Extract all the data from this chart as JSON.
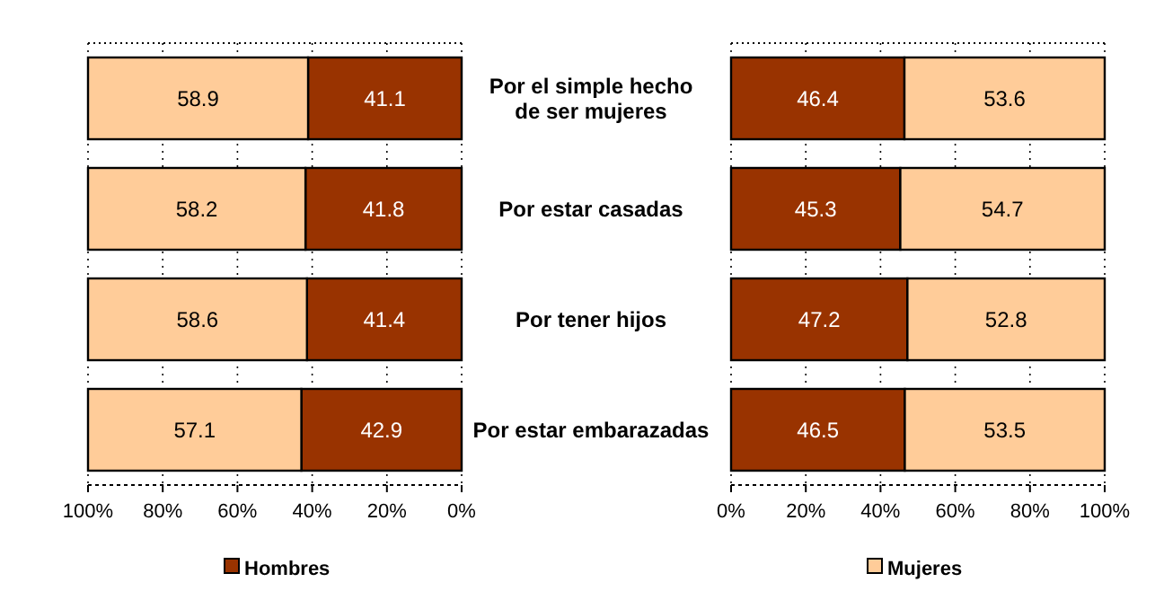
{
  "chart_data": [
    {
      "type": "bar",
      "orientation": "horizontal",
      "stacked": true,
      "categories": [
        null,
        null,
        null,
        null
      ],
      "series": [
        {
          "name": "Hombres",
          "color": "#993300",
          "values": [
            41.1,
            41.8,
            41.4,
            42.9
          ]
        },
        {
          "color": "#ffcc99",
          "values": [
            58.9,
            58.2,
            58.6,
            57.1
          ]
        }
      ],
      "xlim": [
        100,
        0
      ],
      "xticks": [
        {
          "value": 100,
          "label": "100%"
        },
        {
          "value": 80,
          "label": "80%"
        },
        {
          "value": 60,
          "label": "60%"
        },
        {
          "value": 40,
          "label": "40%"
        },
        {
          "value": 20,
          "label": "20%"
        },
        {
          "value": 0,
          "label": "0%"
        }
      ],
      "tick_labels": "x",
      "grid": "x",
      "data_labels": true,
      "legend": "bottom"
    },
    {
      "type": "bar",
      "orientation": "horizontal",
      "stacked": true,
      "categories": [
        "Por el simple hecho\nde ser mujeres",
        "Por estar casadas",
        "Por tener hijos",
        "Por estar embarazadas"
      ],
      "series": [
        {
          "color": "#993300",
          "values": [
            46.4,
            45.3,
            47.2,
            46.5
          ]
        },
        {
          "name": "Mujeres",
          "color": "#ffcc99",
          "values": [
            53.6,
            54.7,
            52.8,
            53.5
          ]
        }
      ],
      "xlim": [
        0,
        100
      ],
      "xticks": [
        {
          "value": 0,
          "label": "0%"
        },
        {
          "value": 20,
          "label": "20%"
        },
        {
          "value": 40,
          "label": "40%"
        },
        {
          "value": 60,
          "label": "60%"
        },
        {
          "value": 80,
          "label": "80%"
        },
        {
          "value": 100,
          "label": "100%"
        }
      ],
      "grid": "x",
      "data_labels": true,
      "legend": "bottom"
    }
  ]
}
